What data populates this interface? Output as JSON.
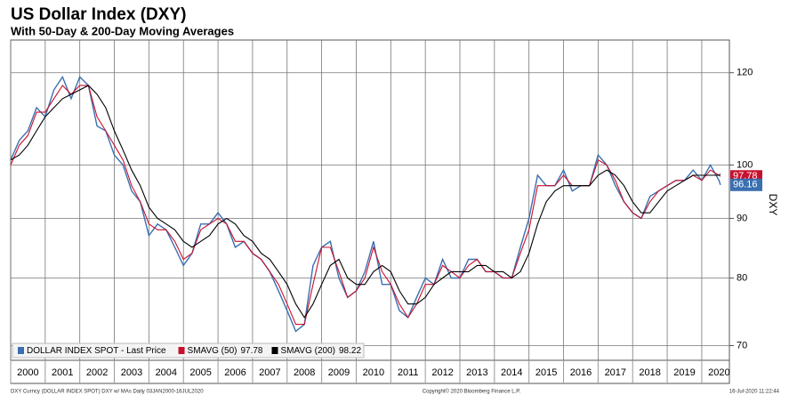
{
  "chart_data": {
    "type": "line",
    "title": "US Dollar Index (DXY)",
    "subtitle": "With 50-Day & 200-Day Moving Averages",
    "y_axis_label": "DXY",
    "log_scale": true,
    "grid": true,
    "legend": "bottom-left",
    "x": [
      2000,
      2000.25,
      2000.5,
      2000.75,
      2001,
      2001.25,
      2001.5,
      2001.75,
      2002,
      2002.25,
      2002.5,
      2002.75,
      2003,
      2003.25,
      2003.5,
      2003.75,
      2004,
      2004.25,
      2004.5,
      2004.75,
      2005,
      2005.25,
      2005.5,
      2005.75,
      2006,
      2006.25,
      2006.5,
      2006.75,
      2007,
      2007.25,
      2007.5,
      2007.75,
      2008,
      2008.25,
      2008.5,
      2008.75,
      2009,
      2009.25,
      2009.5,
      2009.75,
      2010,
      2010.25,
      2010.5,
      2010.75,
      2011,
      2011.25,
      2011.5,
      2011.75,
      2012,
      2012.25,
      2012.5,
      2012.75,
      2013,
      2013.25,
      2013.5,
      2013.75,
      2014,
      2014.25,
      2014.5,
      2014.75,
      2015,
      2015.25,
      2015.5,
      2015.75,
      2016,
      2016.25,
      2016.5,
      2016.75,
      2017,
      2017.25,
      2017.5,
      2017.75,
      2018,
      2018.25,
      2018.5,
      2018.75,
      2019,
      2019.25,
      2019.5,
      2019.75,
      2020,
      2020.25,
      2020.5,
      2020.54
    ],
    "xlim": [
      2000,
      2020.8
    ],
    "xticks": [
      2000,
      2001,
      2002,
      2003,
      2004,
      2005,
      2006,
      2007,
      2008,
      2009,
      2010,
      2011,
      2012,
      2013,
      2014,
      2015,
      2016,
      2017,
      2018,
      2019,
      2020
    ],
    "ylim": [
      68,
      128
    ],
    "yticks": [
      70,
      80,
      90,
      100,
      120
    ],
    "series": [
      {
        "name": "DOLLAR INDEX SPOT - Last Price",
        "color": "#3a6fb0",
        "values": [
          101,
          105,
          107,
          112,
          110,
          116,
          119,
          114,
          119,
          117,
          108,
          107,
          102,
          100,
          95,
          93,
          87,
          89,
          88,
          85,
          82,
          84,
          89,
          89,
          91,
          89,
          85,
          86,
          84,
          83,
          81,
          78,
          75,
          72,
          73,
          82,
          85,
          86,
          80,
          77,
          78,
          81,
          86,
          79,
          79,
          75,
          74,
          77,
          80,
          79,
          83,
          80,
          80,
          83,
          83,
          81,
          81,
          80,
          80,
          85,
          90,
          98,
          96,
          96,
          99,
          95,
          96,
          96,
          102,
          100,
          96,
          93,
          91,
          90,
          94,
          95,
          96,
          97,
          97,
          99,
          97,
          100,
          97,
          96.16
        ]
      },
      {
        "name": "SMAVG (50)",
        "color": "#c8102e",
        "values": [
          100,
          104,
          106,
          111,
          111,
          114,
          117,
          115,
          117,
          117,
          110,
          107,
          104,
          101,
          96,
          93,
          89,
          88,
          88,
          86,
          83,
          84,
          88,
          89,
          90,
          89,
          86,
          86,
          84,
          83,
          81,
          79,
          76,
          73,
          73,
          79,
          85,
          85,
          81,
          77,
          78,
          80,
          85,
          81,
          79,
          76,
          74,
          76,
          79,
          79,
          82,
          81,
          80,
          82,
          83,
          81,
          81,
          80,
          80,
          84,
          88,
          96,
          96,
          96,
          98,
          96,
          96,
          96,
          101,
          100,
          97,
          93,
          91,
          90,
          93,
          95,
          96,
          97,
          97,
          98,
          97,
          99,
          98,
          97.78
        ]
      },
      {
        "name": "SMAVG (200)",
        "color": "#000000",
        "values": [
          101,
          102,
          104,
          107,
          110,
          112,
          114,
          115,
          116,
          117,
          115,
          112,
          107,
          103,
          99,
          96,
          92,
          90,
          89,
          88,
          86,
          85,
          86,
          87,
          89,
          90,
          89,
          87,
          86,
          84,
          83,
          81,
          79,
          76,
          74,
          76,
          79,
          82,
          83,
          80,
          79,
          79,
          81,
          82,
          81,
          78,
          76,
          76,
          77,
          79,
          80,
          81,
          81,
          81,
          82,
          82,
          81,
          81,
          80,
          81,
          84,
          89,
          93,
          95,
          96,
          96,
          96,
          96,
          98,
          99,
          98,
          96,
          93,
          91,
          91,
          93,
          95,
          96,
          97,
          98,
          98,
          98,
          98,
          98.22
        ]
      }
    ],
    "footer_left": "DXY Curncy (DOLLAR INDEX SPOT) DXY w/ MAs  Daily 03JAN2000-16JUL2020",
    "footer_center": "Copyright© 2020 Bloomberg Finance L.P.",
    "footer_right": "16-Jul-2020 11:22:44"
  }
}
